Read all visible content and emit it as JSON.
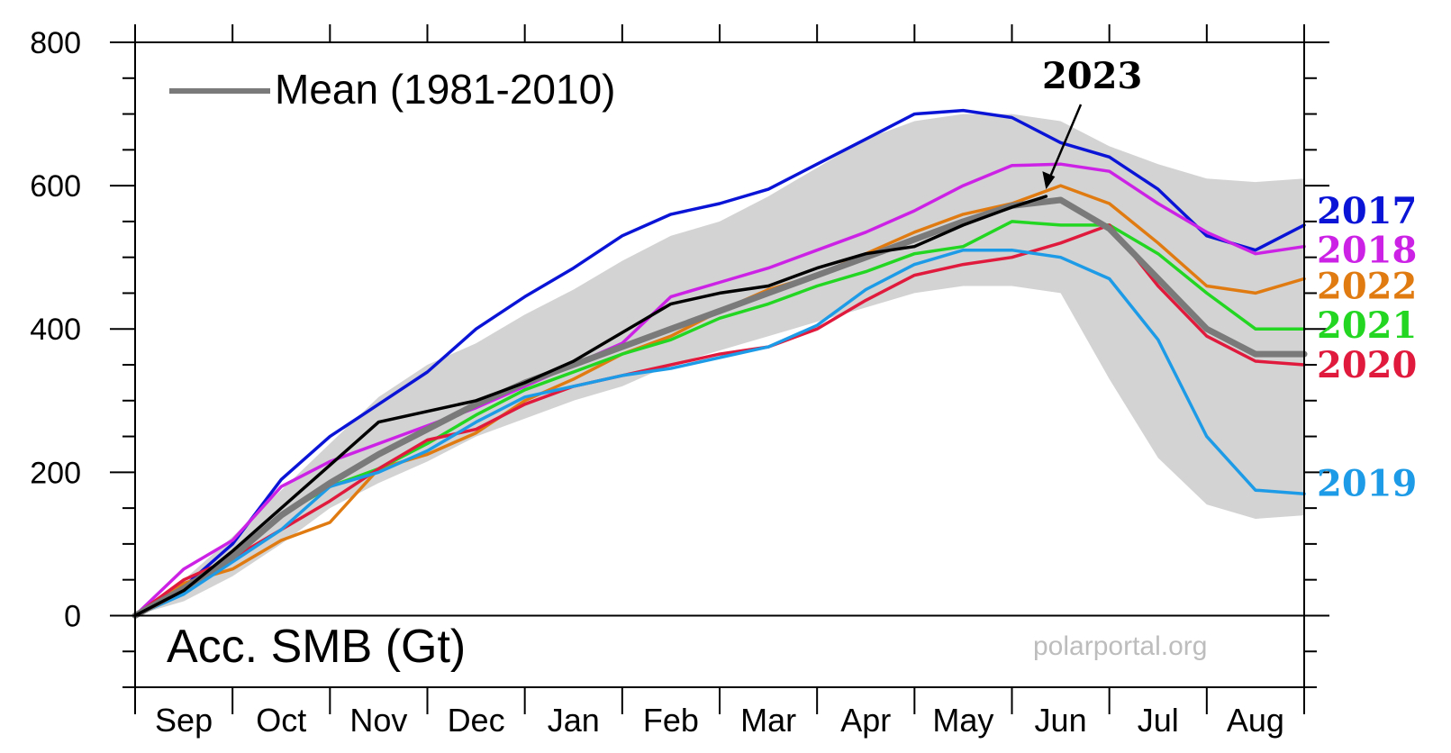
{
  "chart_data": {
    "type": "line",
    "title": "",
    "ylabel": "Acc. SMB (Gt)",
    "xlabel": "",
    "source": "polarportal.org",
    "legend": {
      "label": "Mean (1981-2010)",
      "placement": "top-left"
    },
    "months": [
      "Sep",
      "Oct",
      "Nov",
      "Dec",
      "Jan",
      "Feb",
      "Mar",
      "Apr",
      "May",
      "Jun",
      "Jul",
      "Aug"
    ],
    "x_unit": "month index (0 = 1 Sep, 12 = 31 Aug)",
    "xlim": [
      0,
      12
    ],
    "ylim": [
      -100,
      800
    ],
    "yticks": [
      0,
      200,
      400,
      600,
      800
    ],
    "grid": false,
    "annotation": {
      "text": "2023",
      "points_to_x": 9.35,
      "points_to_y": 595
    },
    "range_band": {
      "x": [
        0,
        0.5,
        1,
        1.5,
        2,
        2.5,
        3,
        3.5,
        4,
        4.5,
        5,
        5.5,
        6,
        6.5,
        7,
        7.5,
        8,
        8.5,
        9,
        9.5,
        10,
        10.5,
        11,
        11.5,
        12
      ],
      "upper": [
        0,
        50,
        110,
        175,
        240,
        305,
        350,
        380,
        420,
        455,
        495,
        530,
        550,
        585,
        625,
        665,
        690,
        700,
        700,
        690,
        655,
        630,
        610,
        605,
        610
      ],
      "lower": [
        0,
        20,
        55,
        100,
        150,
        185,
        215,
        250,
        275,
        300,
        320,
        350,
        370,
        390,
        410,
        430,
        450,
        460,
        460,
        450,
        330,
        220,
        155,
        135,
        140
      ],
      "color": "#d3d3d3"
    },
    "series": [
      {
        "name": "2017",
        "color": "#0a14d6",
        "x": [
          0,
          0.5,
          1,
          1.5,
          2,
          2.5,
          3,
          3.5,
          4,
          4.5,
          5,
          5.5,
          6,
          6.5,
          7,
          7.5,
          8,
          8.5,
          9,
          9.5,
          10,
          10.5,
          11,
          11.5,
          12
        ],
        "y": [
          0,
          40,
          100,
          190,
          250,
          295,
          340,
          400,
          445,
          485,
          530,
          560,
          575,
          595,
          630,
          665,
          700,
          705,
          695,
          660,
          640,
          595,
          530,
          510,
          545
        ]
      },
      {
        "name": "2018",
        "color": "#cc22e6",
        "x": [
          0,
          0.5,
          1,
          1.5,
          2,
          2.5,
          3,
          3.5,
          4,
          4.5,
          5,
          5.5,
          6,
          6.5,
          7,
          7.5,
          8,
          8.5,
          9,
          9.5,
          10,
          10.5,
          11,
          11.5,
          12
        ],
        "y": [
          0,
          65,
          105,
          180,
          215,
          240,
          265,
          290,
          320,
          350,
          380,
          445,
          465,
          485,
          510,
          535,
          565,
          600,
          628,
          630,
          620,
          575,
          535,
          505,
          515
        ]
      },
      {
        "name": "2022",
        "color": "#e07b12",
        "x": [
          0,
          0.5,
          1,
          1.5,
          2,
          2.5,
          3,
          3.5,
          4,
          4.5,
          5,
          5.5,
          6,
          6.5,
          7,
          7.5,
          8,
          8.5,
          9,
          9.5,
          10,
          10.5,
          11,
          11.5,
          12
        ],
        "y": [
          0,
          45,
          65,
          105,
          130,
          205,
          225,
          255,
          300,
          330,
          365,
          390,
          425,
          455,
          475,
          505,
          535,
          560,
          575,
          600,
          575,
          520,
          460,
          450,
          470
        ]
      },
      {
        "name": "2021",
        "color": "#22d622",
        "x": [
          0,
          0.5,
          1,
          1.5,
          2,
          2.5,
          3,
          3.5,
          4,
          4.5,
          5,
          5.5,
          6,
          6.5,
          7,
          7.5,
          8,
          8.5,
          9,
          9.5,
          10,
          10.5,
          11,
          11.5,
          12
        ],
        "y": [
          0,
          35,
          85,
          140,
          180,
          205,
          240,
          280,
          315,
          340,
          365,
          385,
          415,
          435,
          460,
          480,
          505,
          515,
          550,
          545,
          545,
          505,
          450,
          400,
          400
        ]
      },
      {
        "name": "2020",
        "color": "#e01a3c",
        "x": [
          0,
          0.5,
          1,
          1.5,
          2,
          2.5,
          3,
          3.5,
          4,
          4.5,
          5,
          5.5,
          6,
          6.5,
          7,
          7.5,
          8,
          8.5,
          9,
          9.5,
          10,
          10.5,
          11,
          11.5,
          12
        ],
        "y": [
          0,
          50,
          80,
          120,
          160,
          205,
          245,
          260,
          295,
          320,
          335,
          350,
          365,
          375,
          400,
          440,
          475,
          490,
          500,
          520,
          545,
          460,
          390,
          355,
          350
        ]
      },
      {
        "name": "2019",
        "color": "#1e9be6",
        "x": [
          0,
          0.5,
          1,
          1.5,
          2,
          2.5,
          3,
          3.5,
          4,
          4.5,
          5,
          5.5,
          6,
          6.5,
          7,
          7.5,
          8,
          8.5,
          9,
          9.5,
          10,
          10.5,
          11,
          11.5,
          12
        ],
        "y": [
          0,
          30,
          75,
          120,
          180,
          200,
          230,
          270,
          305,
          320,
          335,
          345,
          360,
          375,
          405,
          455,
          490,
          510,
          510,
          500,
          470,
          385,
          250,
          175,
          170
        ]
      },
      {
        "name": "Mean (1981-2010)",
        "color": "#7a7a7a",
        "width": 7,
        "x": [
          0,
          0.5,
          1,
          1.5,
          2,
          2.5,
          3,
          3.5,
          4,
          4.5,
          5,
          5.5,
          6,
          6.5,
          7,
          7.5,
          8,
          8.5,
          9,
          9.5,
          10,
          10.5,
          11,
          11.5,
          12
        ],
        "y": [
          0,
          38,
          82,
          140,
          185,
          225,
          260,
          295,
          325,
          350,
          375,
          400,
          425,
          450,
          475,
          500,
          525,
          550,
          572,
          580,
          540,
          470,
          400,
          365,
          365
        ]
      },
      {
        "name": "2023",
        "color": "#000000",
        "x": [
          0,
          0.5,
          1,
          1.5,
          2,
          2.5,
          3,
          3.5,
          4,
          4.5,
          5,
          5.5,
          6,
          6.5,
          7,
          7.5,
          8,
          8.5,
          9,
          9.35
        ],
        "y": [
          0,
          35,
          90,
          150,
          210,
          270,
          285,
          300,
          325,
          355,
          395,
          435,
          450,
          460,
          485,
          505,
          515,
          545,
          570,
          585
        ]
      }
    ],
    "year_labels": [
      {
        "text": "2017",
        "color": "#0a14d6",
        "at": 565
      },
      {
        "text": "2018",
        "color": "#cc22e6",
        "at": 510
      },
      {
        "text": "2022",
        "color": "#e07b12",
        "at": 460
      },
      {
        "text": "2021",
        "color": "#22d622",
        "at": 405
      },
      {
        "text": "2020",
        "color": "#e01a3c",
        "at": 350
      },
      {
        "text": "2019",
        "color": "#1e9be6",
        "at": 185
      }
    ]
  }
}
